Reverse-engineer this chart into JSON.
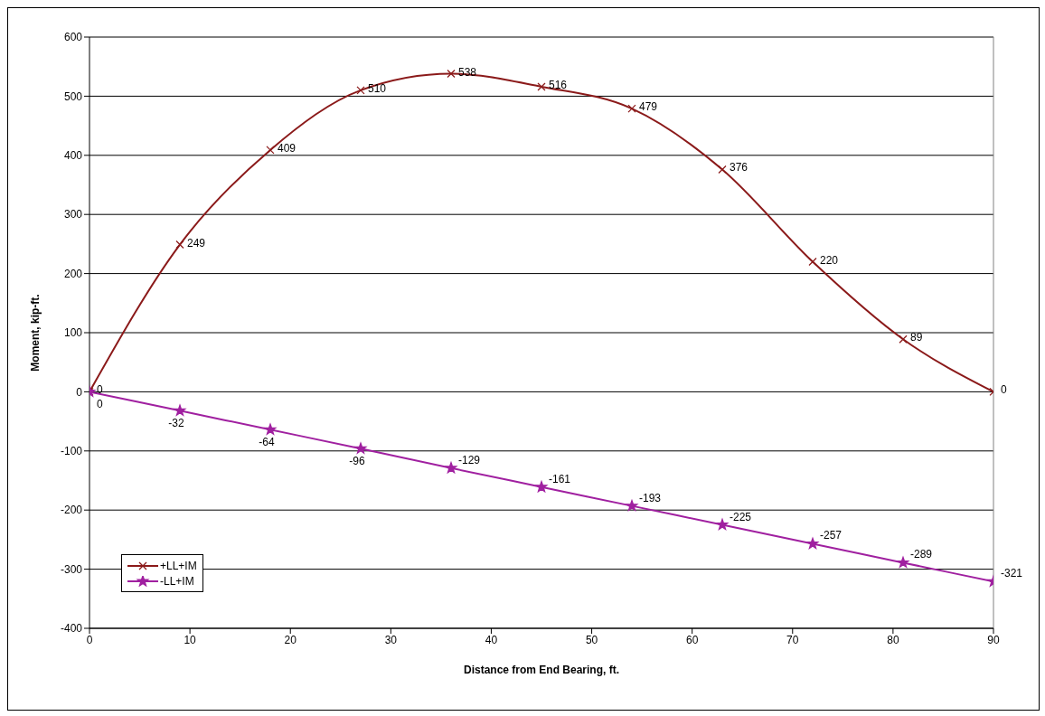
{
  "chart_data": {
    "type": "line",
    "xlabel": "Distance from End Bearing, ft.",
    "ylabel": "Moment, kip-ft.",
    "x": [
      0,
      9,
      18,
      27,
      36,
      45,
      54,
      63,
      72,
      81,
      90
    ],
    "series": [
      {
        "name": "+LL+IM",
        "color": "#8b1a1a",
        "marker": "cross",
        "values": [
          0,
          249,
          409,
          510,
          538,
          516,
          479,
          376,
          220,
          89,
          0
        ]
      },
      {
        "name": "-LL+IM",
        "color": "#a020a0",
        "marker": "star",
        "values": [
          0,
          -32,
          -64,
          -96,
          -129,
          -161,
          -193,
          -225,
          -257,
          -289,
          -321
        ]
      }
    ],
    "xlim": [
      0,
      90
    ],
    "xticks": [
      0,
      10,
      20,
      30,
      40,
      50,
      60,
      70,
      80,
      90
    ],
    "ylim": [
      -400,
      600
    ],
    "yticks": [
      -400,
      -300,
      -200,
      -100,
      0,
      100,
      200,
      300,
      400,
      500,
      600
    ],
    "grid": "y",
    "legend": "bottom left",
    "data_labels": true,
    "line_style": "solid"
  }
}
